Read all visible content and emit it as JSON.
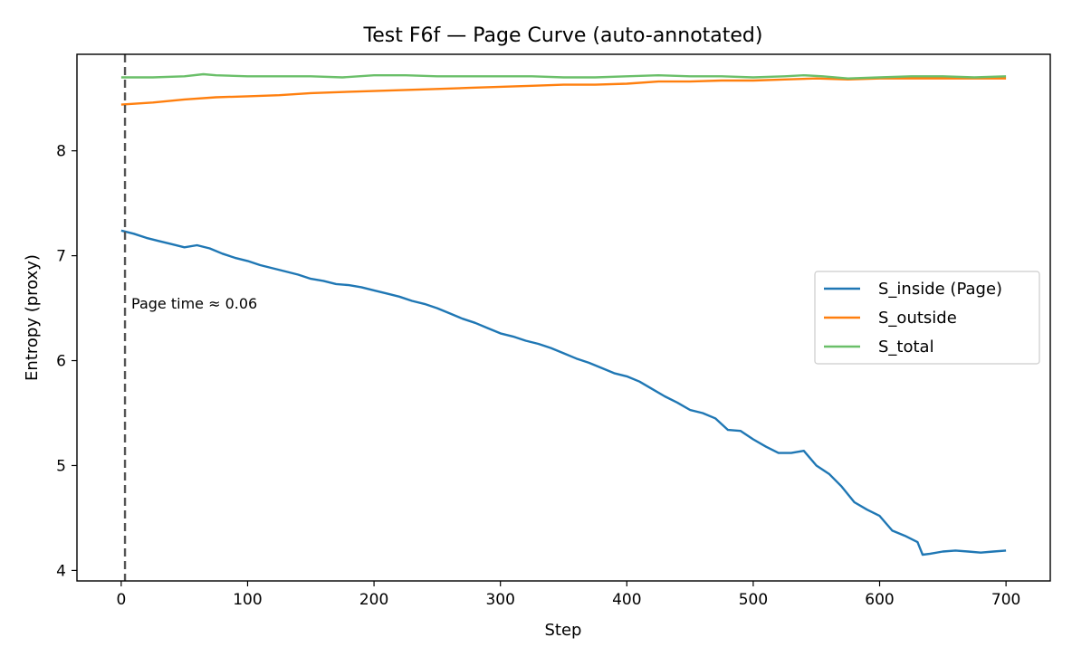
{
  "chart_data": {
    "type": "line",
    "title": "Test F6f — Page Curve (auto-annotated)",
    "xlabel": "Step",
    "ylabel": "Entropy (proxy)",
    "xlim": [
      -35,
      735
    ],
    "ylim": [
      3.9,
      8.92
    ],
    "xticks": [
      0,
      100,
      200,
      300,
      400,
      500,
      600,
      700
    ],
    "yticks": [
      4,
      5,
      6,
      7,
      8
    ],
    "grid": false,
    "legend_position": "center-right",
    "annotation": {
      "text": "Page time ≈ 0.06",
      "vline_x": 3,
      "text_x": 8,
      "text_y": 6.55,
      "line_color": "#555555"
    },
    "series": [
      {
        "name": "S_inside (Page)",
        "color": "#1f77b4",
        "x": [
          0,
          10,
          20,
          30,
          40,
          50,
          60,
          70,
          80,
          90,
          100,
          110,
          120,
          130,
          140,
          150,
          160,
          170,
          180,
          190,
          200,
          210,
          220,
          230,
          240,
          250,
          260,
          270,
          280,
          290,
          300,
          310,
          320,
          330,
          340,
          350,
          360,
          370,
          380,
          390,
          400,
          410,
          420,
          430,
          440,
          450,
          460,
          470,
          480,
          490,
          500,
          510,
          520,
          530,
          540,
          550,
          560,
          570,
          580,
          590,
          600,
          610,
          620,
          630,
          634,
          640,
          650,
          660,
          670,
          680,
          690,
          700
        ],
        "y": [
          7.24,
          7.21,
          7.17,
          7.14,
          7.11,
          7.08,
          7.1,
          7.07,
          7.02,
          6.98,
          6.95,
          6.91,
          6.88,
          6.85,
          6.82,
          6.78,
          6.76,
          6.73,
          6.72,
          6.7,
          6.67,
          6.64,
          6.61,
          6.57,
          6.54,
          6.5,
          6.45,
          6.4,
          6.36,
          6.31,
          6.26,
          6.23,
          6.19,
          6.16,
          6.12,
          6.07,
          6.02,
          5.98,
          5.93,
          5.88,
          5.85,
          5.8,
          5.73,
          5.66,
          5.6,
          5.53,
          5.5,
          5.45,
          5.34,
          5.33,
          5.25,
          5.18,
          5.12,
          5.12,
          5.14,
          5.0,
          4.92,
          4.8,
          4.65,
          4.58,
          4.52,
          4.38,
          4.33,
          4.27,
          4.15,
          4.16,
          4.18,
          4.19,
          4.18,
          4.17,
          4.18,
          4.19
        ]
      },
      {
        "name": "S_outside",
        "color": "#ff7f0e",
        "x": [
          0,
          25,
          50,
          75,
          100,
          125,
          150,
          175,
          200,
          225,
          250,
          275,
          300,
          325,
          350,
          375,
          400,
          425,
          450,
          475,
          500,
          525,
          550,
          575,
          600,
          625,
          650,
          675,
          700
        ],
        "y": [
          8.44,
          8.46,
          8.49,
          8.51,
          8.52,
          8.53,
          8.55,
          8.56,
          8.57,
          8.58,
          8.59,
          8.6,
          8.61,
          8.62,
          8.63,
          8.63,
          8.64,
          8.66,
          8.66,
          8.67,
          8.67,
          8.68,
          8.69,
          8.68,
          8.69,
          8.69,
          8.69,
          8.69,
          8.69
        ]
      },
      {
        "name": "S_total",
        "color": "#6abf69",
        "x": [
          0,
          25,
          50,
          65,
          75,
          100,
          125,
          150,
          175,
          200,
          225,
          250,
          275,
          300,
          325,
          350,
          375,
          400,
          425,
          450,
          475,
          500,
          525,
          540,
          555,
          575,
          600,
          625,
          650,
          675,
          700
        ],
        "y": [
          8.7,
          8.7,
          8.71,
          8.73,
          8.72,
          8.71,
          8.71,
          8.71,
          8.7,
          8.72,
          8.72,
          8.71,
          8.71,
          8.71,
          8.71,
          8.7,
          8.7,
          8.71,
          8.72,
          8.71,
          8.71,
          8.7,
          8.71,
          8.72,
          8.71,
          8.69,
          8.7,
          8.71,
          8.71,
          8.7,
          8.71
        ]
      }
    ]
  }
}
